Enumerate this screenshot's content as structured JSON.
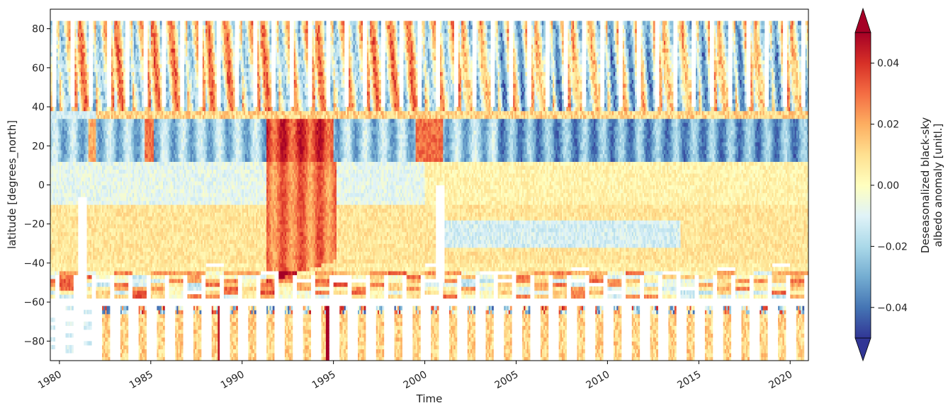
{
  "chart_data": {
    "type": "heatmap",
    "title": "",
    "xlabel": "Time",
    "ylabel": "latitude [degrees_north]",
    "xlim": [
      1979.5,
      2021.0
    ],
    "ylim": [
      -90,
      90
    ],
    "x_ticks": [
      1980,
      1985,
      1990,
      1995,
      2000,
      2005,
      2010,
      2015,
      2020
    ],
    "x_tick_labels": [
      "1980",
      "1985",
      "1990",
      "1995",
      "2000",
      "2005",
      "2010",
      "2015",
      "2020"
    ],
    "y_ticks": [
      80,
      60,
      40,
      20,
      0,
      -20,
      -40,
      -60,
      -80
    ],
    "y_tick_labels": [
      "80",
      "60",
      "40",
      "20",
      "0",
      "−20",
      "−40",
      "−60",
      "−80"
    ],
    "colormap": "RdYlBu_r",
    "colors": [
      "#313695",
      "#4575b4",
      "#74add1",
      "#abd9e9",
      "#e0f3f8",
      "#ffffbf",
      "#fee090",
      "#fdae61",
      "#f46d43",
      "#d73027",
      "#a50026"
    ],
    "colorbar": {
      "label": "Deseasonalized black-sky albedo anomaly [unitl.]",
      "label_line1": "Deseasonalized black-sky",
      "label_line2": "albedo anomaly [unitl.]",
      "vmin": -0.05,
      "vmax": 0.05,
      "extend": "both",
      "ticks": [
        0.04,
        0.02,
        0.0,
        -0.02,
        -0.04
      ],
      "tick_labels": [
        "0.04",
        "0.02",
        "0.00",
        "−0.02",
        "−0.04"
      ]
    },
    "grid": false,
    "features": [
      {
        "lat": [
          14,
          32
        ],
        "description": "Persistent negative anomaly band (about −0.03) across most years; strongly positive (about +0.04) during 1991–1994 and around 2000"
      },
      {
        "lat": [
          -50,
          20
        ],
        "description": "Broad positive anomaly (about +0.02 to +0.04) in 1991–1995"
      },
      {
        "lat": [
          40,
          84
        ],
        "description": "Seasonal streaks alternating red and blue every year"
      },
      {
        "lat": [
          -90,
          -60
        ],
        "description": "Sparse seasonal coverage with mostly weak positive anomalies"
      }
    ]
  }
}
